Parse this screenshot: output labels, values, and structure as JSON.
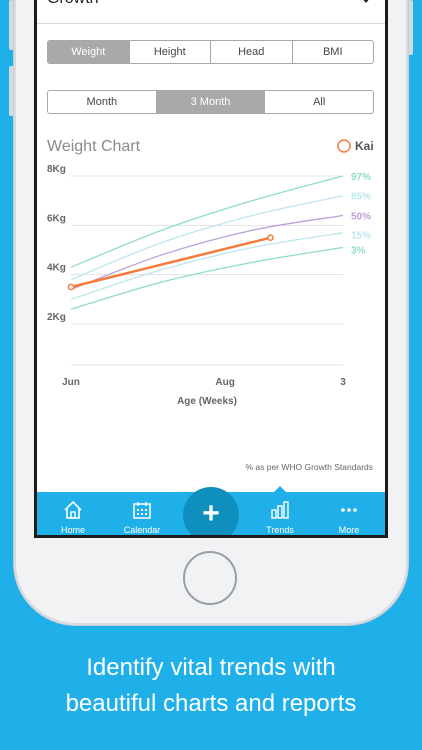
{
  "header": {
    "title": "Growth"
  },
  "measure_tabs": [
    {
      "label": "Weight",
      "active": true
    },
    {
      "label": "Height",
      "active": false
    },
    {
      "label": "Head",
      "active": false
    },
    {
      "label": "BMI",
      "active": false
    }
  ],
  "range_tabs": [
    {
      "label": "Month",
      "active": false
    },
    {
      "label": "3 Month",
      "active": true
    },
    {
      "label": "All",
      "active": false
    }
  ],
  "chart_title": "Weight Chart",
  "chart_data": {
    "type": "line",
    "title": "Weight Chart",
    "xlabel": "Age (Weeks)",
    "ylabel": "",
    "x_ticks": [
      "Jun",
      "Aug",
      "3"
    ],
    "y_ticks": [
      "2Kg",
      "4Kg",
      "6Kg",
      "8Kg"
    ],
    "ylim": [
      1,
      9
    ],
    "legend": {
      "name": "Kai",
      "placement": "top-right"
    },
    "series": [
      {
        "name": "Kai",
        "color": "#f47b3b",
        "x": [
          0,
          2.2
        ],
        "y": [
          3.5,
          5.5
        ]
      },
      {
        "name": "97%",
        "color": "#8fdcc7",
        "x": [
          0,
          1,
          2,
          3
        ],
        "y": [
          4.3,
          5.8,
          7.0,
          8.0
        ]
      },
      {
        "name": "85%",
        "color": "#bde6f0",
        "x": [
          0,
          1,
          2,
          3
        ],
        "y": [
          3.8,
          5.3,
          6.4,
          7.2
        ]
      },
      {
        "name": "50%",
        "color": "#b9a0d8",
        "x": [
          0,
          1,
          2,
          3
        ],
        "y": [
          3.4,
          4.8,
          5.8,
          6.4
        ]
      },
      {
        "name": "15%",
        "color": "#bde6f0",
        "x": [
          0,
          1,
          2,
          3
        ],
        "y": [
          3.0,
          4.2,
          5.1,
          5.7
        ]
      },
      {
        "name": "3%",
        "color": "#8fdcc7",
        "x": [
          0,
          1,
          2,
          3
        ],
        "y": [
          2.6,
          3.7,
          4.5,
          5.1
        ]
      }
    ]
  },
  "who_note": "% as per WHO Growth Standards",
  "tabbar": {
    "home": "Home",
    "calendar": "Calendar",
    "add": "+",
    "trends": "Trends",
    "more": "More"
  },
  "caption": {
    "line1": "Identify vital trends with",
    "line2": "beautiful charts and reports"
  }
}
